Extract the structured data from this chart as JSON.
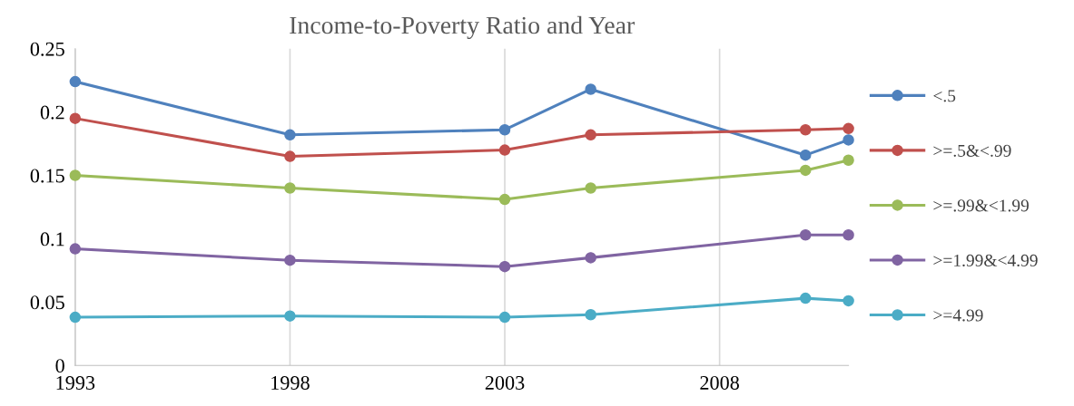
{
  "chart_data": {
    "type": "line",
    "title": "Income-to-Poverty Ratio and Year",
    "x": [
      1993,
      1998,
      2003,
      2005,
      2010,
      2011
    ],
    "series": [
      {
        "name": "<.5",
        "color": "#4f81bd",
        "values": [
          0.224,
          0.182,
          0.186,
          0.218,
          0.166,
          0.178
        ]
      },
      {
        "name": ">=.5&<.99",
        "color": "#c0504d",
        "values": [
          0.195,
          0.165,
          0.17,
          0.182,
          0.186,
          0.187
        ]
      },
      {
        "name": ">=.99&<1.99",
        "color": "#9bbb59",
        "values": [
          0.15,
          0.14,
          0.131,
          0.14,
          0.154,
          0.162
        ]
      },
      {
        "name": ">=1.99&<4.99",
        "color": "#8064a2",
        "values": [
          0.092,
          0.083,
          0.078,
          0.085,
          0.103,
          0.103
        ]
      },
      {
        "name": ">=4.99",
        "color": "#4bacc6",
        "values": [
          0.038,
          0.039,
          0.038,
          0.04,
          0.053,
          0.051
        ]
      }
    ],
    "xlim": [
      1993,
      2011
    ],
    "xticks": [
      1993,
      1998,
      2003,
      2008
    ],
    "ylim": [
      0,
      0.25
    ],
    "yticks": [
      0,
      0.05,
      0.1,
      0.15,
      0.2,
      0.25
    ],
    "grid": "x",
    "legend": "right",
    "marker": "circle",
    "line_style": "solid"
  }
}
